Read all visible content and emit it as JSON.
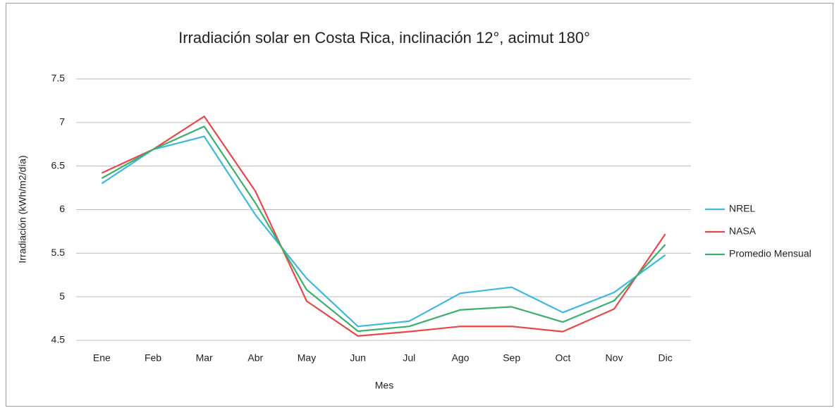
{
  "chart_data": {
    "type": "line",
    "title": "Irradiación solar en Costa Rica, inclinación 12°, acimut 180°",
    "x_label": "Mes",
    "y_label": "Irradiación (kWh/m2/día)",
    "categories": [
      "Ene",
      "Feb",
      "Mar",
      "Abr",
      "May",
      "Jun",
      "Jul",
      "Ago",
      "Sep",
      "Oct",
      "Nov",
      "Dic"
    ],
    "series": [
      {
        "name": "NREL",
        "color": "#3cb8e0",
        "values": [
          6.3,
          6.69,
          6.84,
          5.94,
          5.21,
          4.66,
          4.72,
          5.04,
          5.11,
          4.82,
          5.05,
          5.48
        ]
      },
      {
        "name": "NASA",
        "color": "#e8474a",
        "values": [
          6.42,
          6.69,
          7.07,
          6.21,
          4.95,
          4.55,
          4.6,
          4.66,
          4.66,
          4.6,
          4.86,
          5.72
        ]
      },
      {
        "name": "Promedio Mensual",
        "color": "#3daf6a",
        "values": [
          6.36,
          6.69,
          6.955,
          6.075,
          5.08,
          4.605,
          4.66,
          4.85,
          4.885,
          4.71,
          4.955,
          5.6
        ]
      }
    ],
    "ylim": [
      4.5,
      7.5
    ],
    "yticks": [
      4.5,
      5,
      5.5,
      6,
      6.5,
      7,
      7.5
    ],
    "grid": true,
    "legend": "right"
  }
}
